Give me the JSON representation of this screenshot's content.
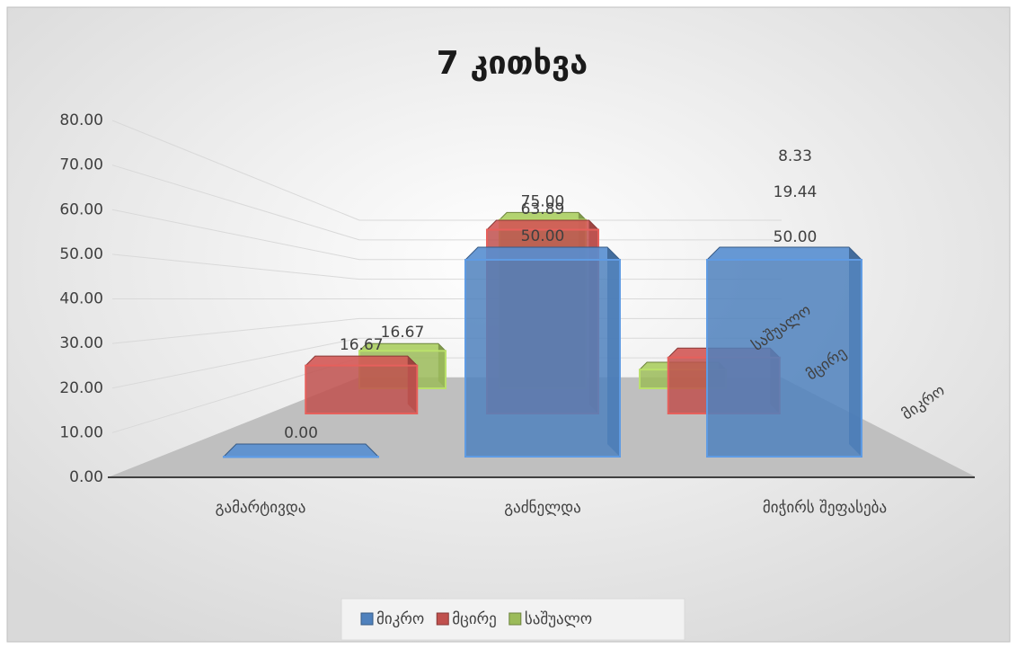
{
  "chart_data": {
    "type": "bar3d",
    "title": "7 კითხვა",
    "categories": [
      "გამარტივდა",
      "გაძნელდა",
      "მიჭირს შეფასება"
    ],
    "series": [
      {
        "name": "მიკრო",
        "color": "#4f81bd",
        "values": [
          0,
          50,
          50
        ],
        "value_labels": [
          "0.00",
          "50.00",
          "50.00"
        ]
      },
      {
        "name": "მცირე",
        "color": "#c0504d",
        "values": [
          16.67,
          63.89,
          19.44
        ],
        "value_labels": [
          "16.67",
          "63.89",
          "19.44"
        ]
      },
      {
        "name": "საშუალო",
        "color": "#9bbb59",
        "values": [
          16.67,
          75,
          8.33
        ],
        "value_labels": [
          "16.67",
          "75.00",
          "8.33"
        ]
      }
    ],
    "ylim": [
      0,
      80
    ],
    "yticks": [
      {
        "value": 0,
        "label": "0.00"
      },
      {
        "value": 10,
        "label": "10.00"
      },
      {
        "value": 20,
        "label": "20.00"
      },
      {
        "value": 30,
        "label": "30.00"
      },
      {
        "value": 40,
        "label": "40.00"
      },
      {
        "value": 50,
        "label": "50.00"
      },
      {
        "value": 60,
        "label": "60.00"
      },
      {
        "value": 70,
        "label": "70.00"
      },
      {
        "value": 80,
        "label": "80.00"
      }
    ],
    "grid": true,
    "legend": "bottom"
  }
}
